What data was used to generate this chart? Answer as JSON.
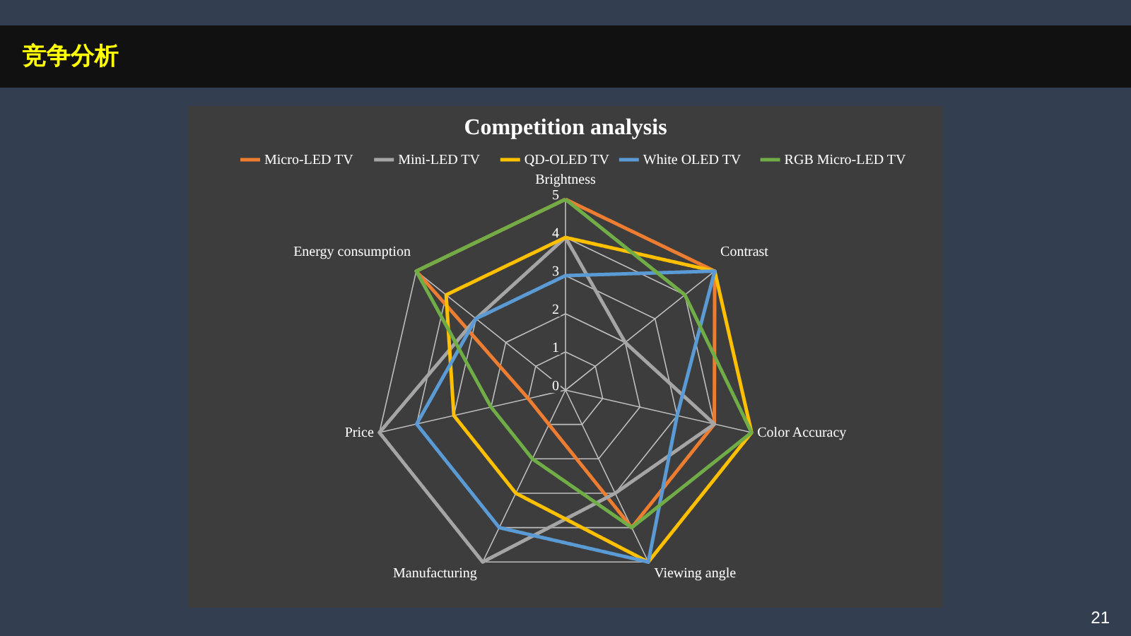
{
  "chart_data": {
    "type": "radar",
    "title": "Competition analysis",
    "categories": [
      "Brightness",
      "Contrast",
      "Color Accuracy",
      "Viewing angle",
      "Manufacturing",
      "Price",
      "Energy consumption"
    ],
    "series": [
      {
        "name": "Micro-LED TV",
        "color": "#ed7d31",
        "values": [
          5,
          5,
          4,
          4,
          1,
          1,
          5
        ]
      },
      {
        "name": "Mini-LED TV",
        "color": "#a5a5a5",
        "values": [
          4,
          2,
          4,
          3,
          5,
          5,
          3
        ]
      },
      {
        "name": "QD-OLED TV",
        "color": "#ffc000",
        "values": [
          4,
          5,
          5,
          5,
          3,
          3,
          4
        ]
      },
      {
        "name": "White OLED TV",
        "color": "#5b9bd5",
        "values": [
          3,
          5,
          3,
          5,
          4,
          4,
          3
        ]
      },
      {
        "name": "RGB Micro-LED TV",
        "color": "#70ad47",
        "values": [
          5,
          4,
          5,
          4,
          2,
          2,
          5
        ]
      }
    ],
    "ylim": [
      0,
      5
    ],
    "yticks": [
      0,
      1,
      2,
      3,
      4,
      5
    ],
    "grid": true,
    "legend": "top",
    "line_style": "solid",
    "annotations": [
      "竞争分析",
      "21"
    ]
  }
}
